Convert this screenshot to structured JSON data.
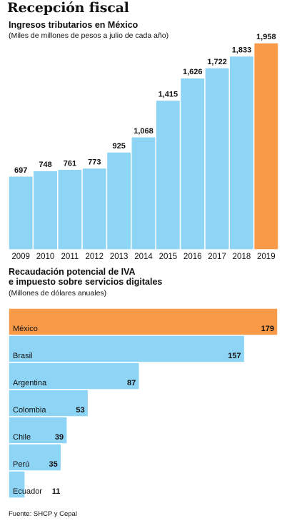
{
  "title": "Recepción fiscal",
  "source": "Fuente: SHCP y Cepal",
  "colors": {
    "bar": "#8dd4f5",
    "highlight": "#f99a48",
    "edge": "#ffffff"
  },
  "chart_data": [
    {
      "type": "bar",
      "title": "Ingresos tributarios en México",
      "subtitle": "(Miles de millones de pesos a julio de cada año)",
      "categories": [
        "2009",
        "2010",
        "2011",
        "2012",
        "2013",
        "2014",
        "2015",
        "2016",
        "2017",
        "2018",
        "2019"
      ],
      "values": [
        697,
        748,
        761,
        773,
        925,
        1068,
        1415,
        1626,
        1722,
        1833,
        1958
      ],
      "value_labels": [
        "697",
        "748",
        "761",
        "773",
        "925",
        "1,068",
        "1,415",
        "1,626",
        "1,722",
        "1,833",
        "1,958"
      ],
      "highlight": "2019",
      "ylim": [
        0,
        1958
      ]
    },
    {
      "type": "bar",
      "orientation": "horizontal",
      "title": "Recaudación potencial de IVA\ne impuesto sobre servicios digitales",
      "title_lines": [
        "Recaudación potencial de IVA",
        "e impuesto sobre servicios digitales"
      ],
      "subtitle": "(Millones de dólares anuales)",
      "categories": [
        "México",
        "Brasil",
        "Argentina",
        "Colombia",
        "Chile",
        "Perú",
        "Ecuador"
      ],
      "values": [
        179,
        157,
        87,
        53,
        39,
        35,
        11
      ],
      "value_labels": [
        "179",
        "157",
        "87",
        "53",
        "39",
        "35",
        "11"
      ],
      "highlight": "México",
      "xlim": [
        0,
        179
      ]
    }
  ]
}
